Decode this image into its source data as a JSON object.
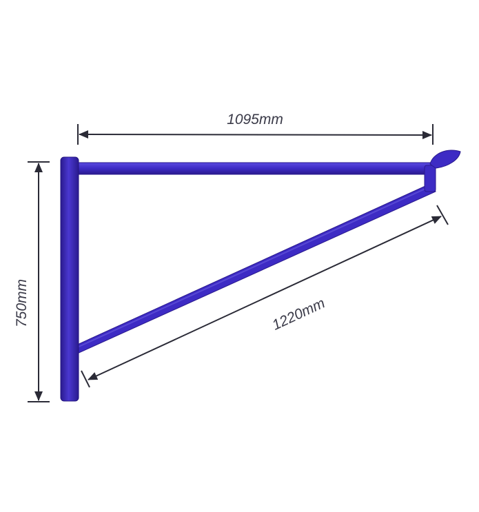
{
  "diagram": {
    "dimensions": {
      "horizontal_arm": "1095mm",
      "diagonal_brace": "1220mm",
      "vertical_post": "750mm"
    },
    "colors": {
      "background": "#ffffff",
      "frame_main": "#3d2bc4",
      "frame_dark": "#2a1a8e",
      "frame_light": "#6a5ce0",
      "dimension_line": "#2a2a36",
      "label_text": "#3a3a48"
    }
  }
}
